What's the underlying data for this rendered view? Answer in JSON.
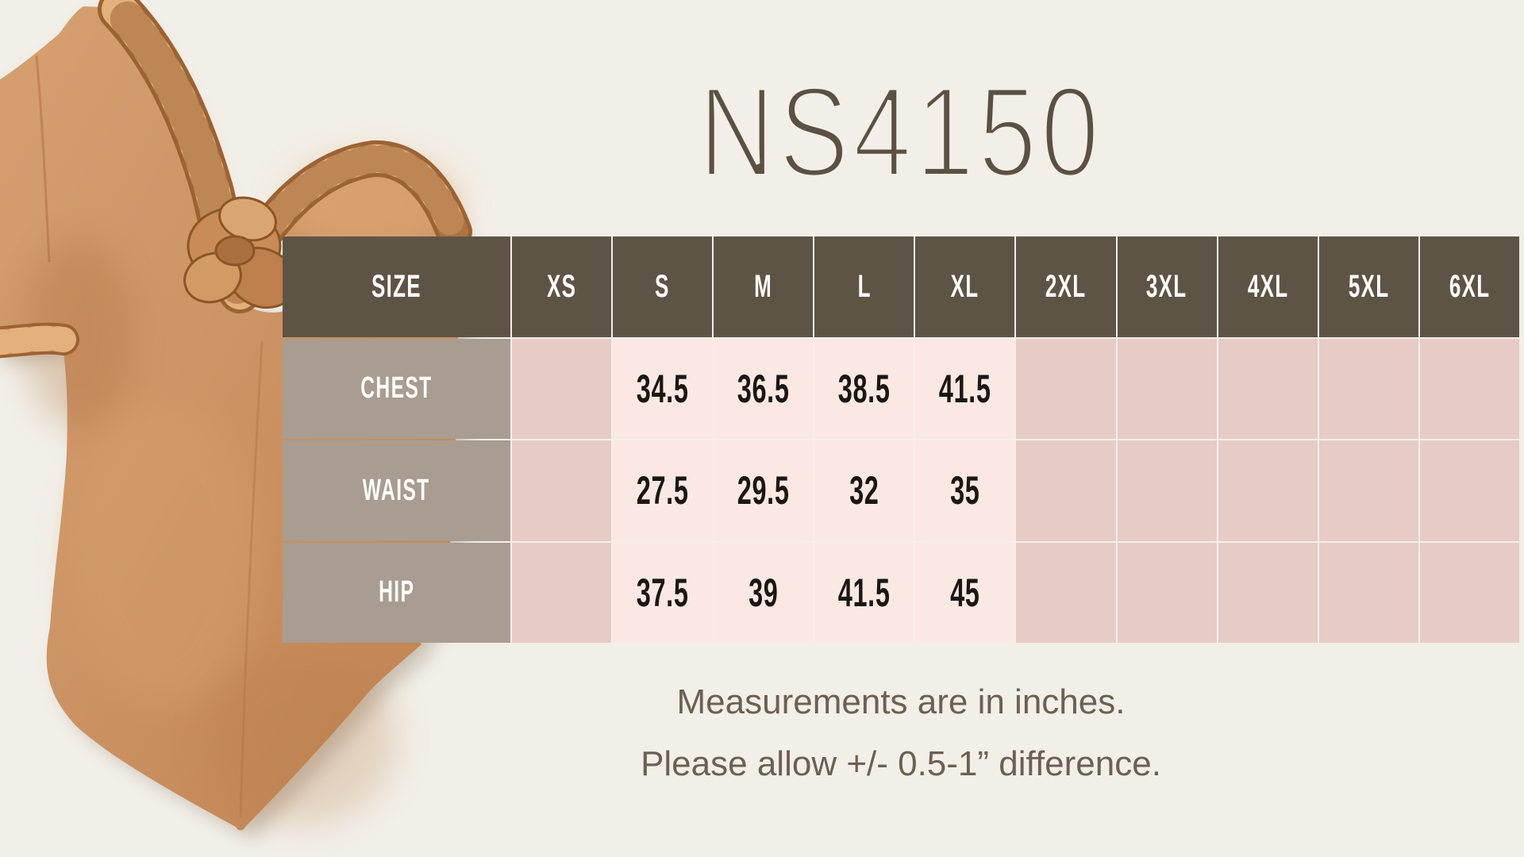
{
  "page": {
    "background": "#f2efe8"
  },
  "header": {
    "title": "NS4150"
  },
  "size_chart": {
    "columns": [
      "SIZE",
      "XS",
      "S",
      "M",
      "L",
      "XL",
      "2XL",
      "3XL",
      "4XL",
      "5XL",
      "6XL"
    ],
    "rows": [
      {
        "label": "CHEST",
        "values": [
          "",
          "34.5",
          "36.5",
          "38.5",
          "41.5",
          "",
          "",
          "",
          "",
          ""
        ]
      },
      {
        "label": "WAIST",
        "values": [
          "",
          "27.5",
          "29.5",
          "32",
          "35",
          "",
          "",
          "",
          "",
          ""
        ]
      },
      {
        "label": "HIP",
        "values": [
          "",
          "37.5",
          "39",
          "41.5",
          "45",
          "",
          "",
          "",
          "",
          ""
        ]
      }
    ],
    "units": "inches"
  },
  "notes": {
    "line1": "Measurements are in inches.",
    "line2": "Please allow +/- 0.5-1” difference."
  },
  "product_image": {
    "name": "braided-bodysuit-photo",
    "alt": "Tan one-piece bodysuit with braided neckline trim and short sleeve"
  },
  "colors": {
    "page_bg": "#f2efe8",
    "header_bg": "#5e5446",
    "label_bg": "#a99c90",
    "empty_cell_bg": "#e7cbc5",
    "value_cell_bg": "#fbe8e2",
    "title_color": "#5b5143",
    "note_text": "#6b6052",
    "header_text": "#fdfdfc",
    "value_text": "#1a1714",
    "suit_tan": "#cd9465",
    "braid_tan": "#c68a57"
  }
}
